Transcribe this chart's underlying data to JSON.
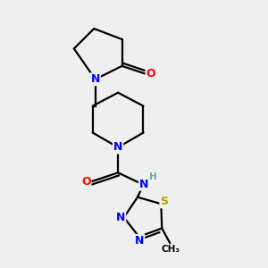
{
  "bg_color": "#efefef",
  "bond_color": "#000000",
  "line_width": 1.6,
  "atom_colors": {
    "N": "#0000ff",
    "O": "#ff0000",
    "S": "#aaaa00",
    "C": "#000000",
    "H": "#6aaa99"
  },
  "figsize": [
    3.0,
    3.0
  ],
  "dpi": 100
}
